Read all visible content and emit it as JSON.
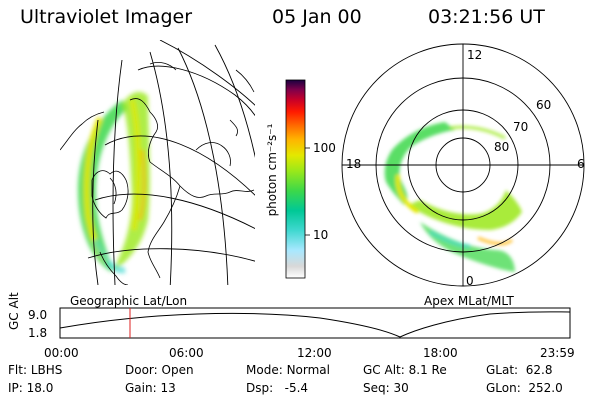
{
  "header": {
    "title": "Ultraviolet Imager",
    "date": "05 Jan 00",
    "time": "03:21:56 UT"
  },
  "colorbar": {
    "unit_label": "photon cm⁻²s⁻¹",
    "ticks": [
      "100",
      "10"
    ],
    "colors": [
      "#ffffff",
      "#d8d8d8",
      "#a8e8ff",
      "#40d8d0",
      "#00c896",
      "#3cd84a",
      "#9ae81a",
      "#e4e800",
      "#ffb400",
      "#ff6a00",
      "#ff1a00",
      "#c80028",
      "#80004a",
      "#1a0040"
    ]
  },
  "left_panel": {
    "caption": "Geographic Lat/Lon"
  },
  "right_panel": {
    "caption": "Apex MLat/MLT",
    "mlt_labels": {
      "top": "12",
      "left": "18",
      "right": "6",
      "bottom": "0"
    },
    "lat_labels": [
      "60",
      "70",
      "80"
    ]
  },
  "timeline": {
    "y_label": "GC Alt",
    "y_values": [
      "9.0",
      "1.8"
    ],
    "x_ticks": [
      "00:00",
      "06:00",
      "12:00",
      "18:00",
      "23:59"
    ],
    "marker_color": "#dd2020"
  },
  "info_rows": [
    [
      {
        "key": "Flt:",
        "value": "LBHS"
      },
      {
        "key": "Door:",
        "value": "Open"
      },
      {
        "key": "Mode:",
        "value": "Normal"
      },
      {
        "key": "GC Alt:",
        "value": "8.1 Re"
      },
      {
        "key": "GLat:",
        "value": "62.8"
      }
    ],
    [
      {
        "key": "IP:",
        "value": "18.0"
      },
      {
        "key": "Gain:",
        "value": "13"
      },
      {
        "key": "Dsp:",
        "value": "-5.4"
      },
      {
        "key": "Seq:",
        "value": "30"
      },
      {
        "key": "GLon:",
        "value": "252.0"
      }
    ]
  ]
}
